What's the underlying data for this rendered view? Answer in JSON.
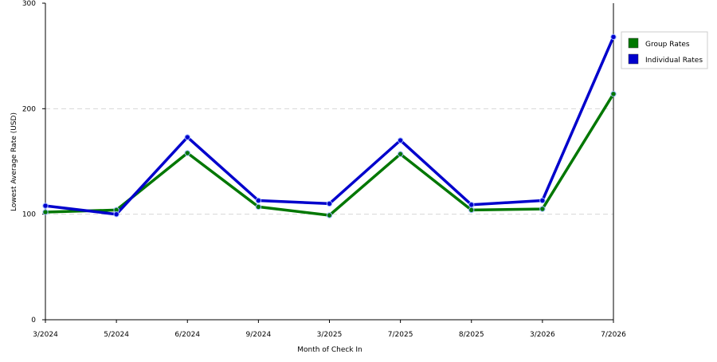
{
  "chart_data": {
    "type": "line",
    "title": "",
    "xlabel": "Month of Check In",
    "ylabel": "Lowest Average Rate (USD)",
    "categories": [
      "3/2024",
      "5/2024",
      "6/2024",
      "9/2024",
      "3/2025",
      "7/2025",
      "8/2025",
      "3/2026",
      "7/2026"
    ],
    "ylim": [
      0,
      300
    ],
    "yticks": [
      0,
      100,
      200,
      300
    ],
    "grid": "horizontal dashed",
    "legend_position": "right",
    "series": [
      {
        "name": "Group Rates",
        "color": "#007700",
        "values": [
          102,
          104,
          158,
          107,
          99,
          157,
          104,
          105,
          214
        ]
      },
      {
        "name": "Individual Rates",
        "color": "#0000cc",
        "values": [
          108,
          100,
          173,
          113,
          110,
          170,
          109,
          113,
          268
        ]
      }
    ]
  }
}
